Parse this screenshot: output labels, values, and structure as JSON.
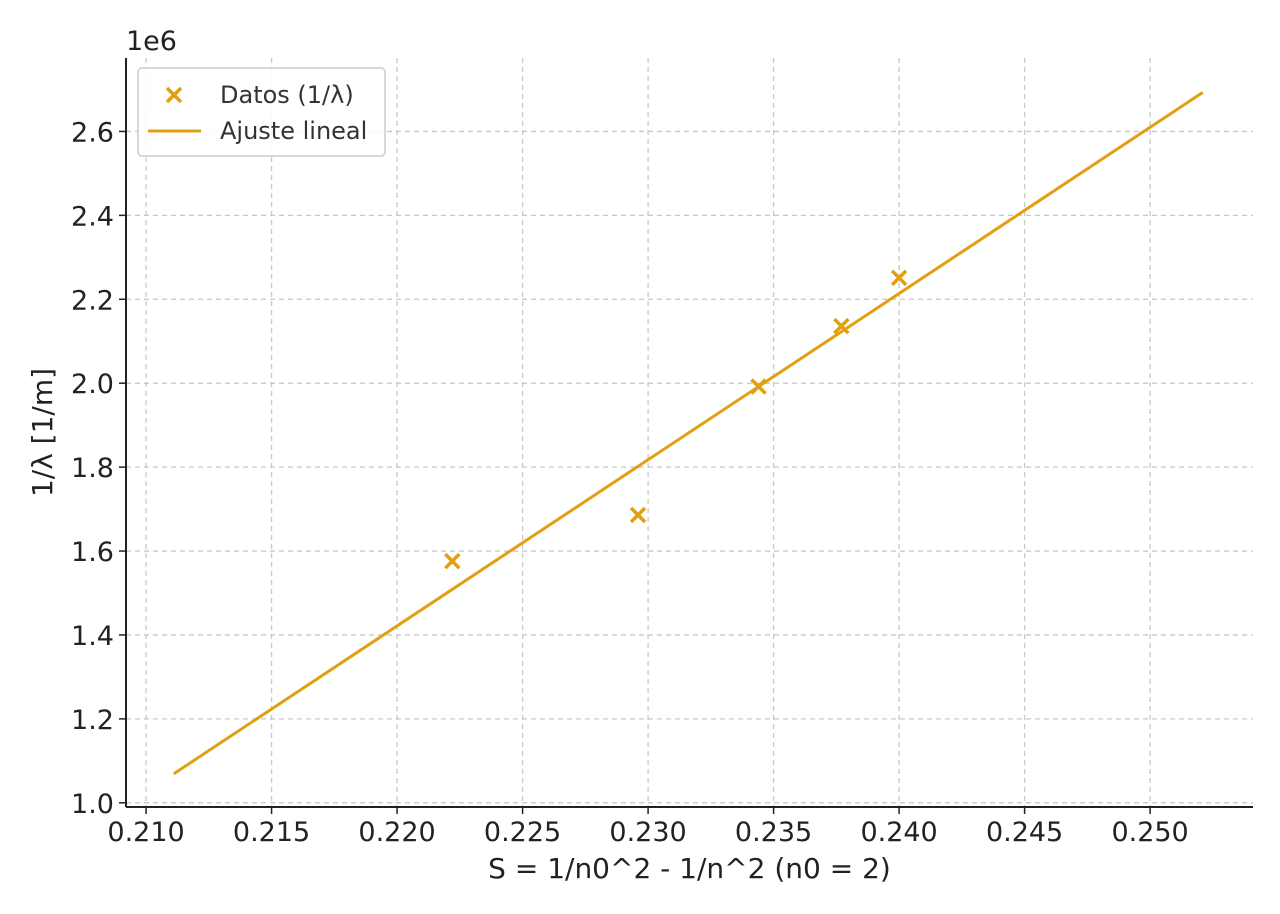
{
  "chart_data": {
    "type": "scatter",
    "xlabel": "S = 1/n0^2 - 1/n^2 (n0 = 2)",
    "ylabel": "1/λ [1/m]",
    "y_scale_label": "1e6",
    "xlim": [
      0.2092,
      0.2541
    ],
    "ylim": [
      0.99,
      2.775
    ],
    "x_ticks": [
      0.21,
      0.215,
      0.22,
      0.225,
      0.23,
      0.235,
      0.24,
      0.245,
      0.25
    ],
    "x_tick_labels": [
      "0.210",
      "0.215",
      "0.220",
      "0.225",
      "0.230",
      "0.235",
      "0.240",
      "0.245",
      "0.250"
    ],
    "y_ticks": [
      1.0,
      1.2,
      1.4,
      1.6,
      1.8,
      2.0,
      2.2,
      2.4,
      2.6
    ],
    "y_tick_labels": [
      "1.0",
      "1.2",
      "1.4",
      "1.6",
      "1.8",
      "2.0",
      "2.2",
      "2.4",
      "2.6"
    ],
    "grid": true,
    "legend_position": "top-left",
    "color": "#E0A010",
    "series": [
      {
        "name": "Datos (1/λ)",
        "kind": "scatter",
        "marker": "x",
        "x": [
          0.2222,
          0.2296,
          0.2344,
          0.2377,
          0.24
        ],
        "y": [
          1.576,
          1.686,
          1.992,
          2.136,
          2.251
        ]
      },
      {
        "name": "Ajuste lineal",
        "kind": "line",
        "x": [
          0.2111,
          0.2521
        ],
        "y": [
          1.069,
          2.693
        ]
      }
    ]
  }
}
